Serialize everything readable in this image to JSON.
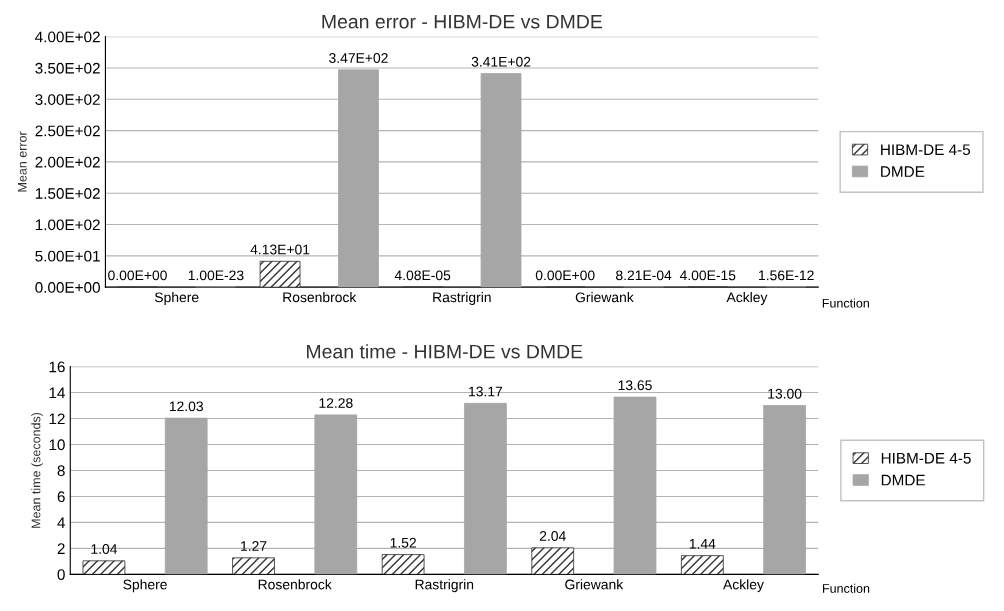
{
  "chart_data": [
    {
      "type": "bar",
      "title": "Mean error - HIBM-DE vs DMDE",
      "ylabel": "Mean error",
      "xlabel": "Function",
      "categories": [
        "Sphere",
        "Rosenbrock",
        "Rastrigrin",
        "Griewank",
        "Ackley"
      ],
      "series": [
        {
          "name": "HIBM-DE 4-5",
          "color": "#333333",
          "values": [
            0,
            41.3,
            4.08e-05,
            0,
            4e-15
          ],
          "value_labels": [
            "0.00E+00",
            "4.13E+01",
            "4.08E-05",
            "0.00E+00",
            "4.00E-15"
          ]
        },
        {
          "name": "DMDE",
          "color": "#a6a6a6",
          "values": [
            1e-23,
            347,
            341,
            0.000821,
            1.56e-12
          ],
          "value_labels": [
            "1.00E-23",
            "3.47E+02",
            "3.41E+02",
            "8.21E-04",
            "1.56E-12"
          ]
        }
      ],
      "ylim": [
        0,
        400
      ],
      "yticks": [
        {
          "value": 0,
          "label": "0.00E+00"
        },
        {
          "value": 50,
          "label": "5.00E+01"
        },
        {
          "value": 100,
          "label": "1.00E+02"
        },
        {
          "value": 150,
          "label": "1.50E+02"
        },
        {
          "value": 200,
          "label": "2.00E+02"
        },
        {
          "value": 250,
          "label": "2.50E+02"
        },
        {
          "value": 300,
          "label": "3.00E+02"
        },
        {
          "value": 350,
          "label": "3.50E+02"
        },
        {
          "value": 400,
          "label": "4.00E+02"
        }
      ],
      "grid": "y",
      "legend": "right"
    },
    {
      "type": "bar",
      "title": "Mean time - HIBM-DE vs DMDE",
      "ylabel": "Mean time (seconds)",
      "xlabel": "Function",
      "categories": [
        "Sphere",
        "Rosenbrock",
        "Rastrigrin",
        "Griewank",
        "Ackley"
      ],
      "series": [
        {
          "name": "HIBM-DE 4-5",
          "color": "#333333",
          "values": [
            1.04,
            1.27,
            1.52,
            2.04,
            1.44
          ],
          "value_labels": [
            "1.04",
            "1.27",
            "1.52",
            "2.04",
            "1.44"
          ]
        },
        {
          "name": "DMDE",
          "color": "#a6a6a6",
          "values": [
            12.03,
            12.28,
            13.17,
            13.65,
            13.0
          ],
          "value_labels": [
            "12.03",
            "12.28",
            "13.17",
            "13.65",
            "13.00"
          ]
        }
      ],
      "ylim": [
        0,
        16
      ],
      "yticks": [
        0,
        2,
        4,
        6,
        8,
        10,
        12,
        14,
        16
      ],
      "grid": "y",
      "legend": "right"
    }
  ]
}
